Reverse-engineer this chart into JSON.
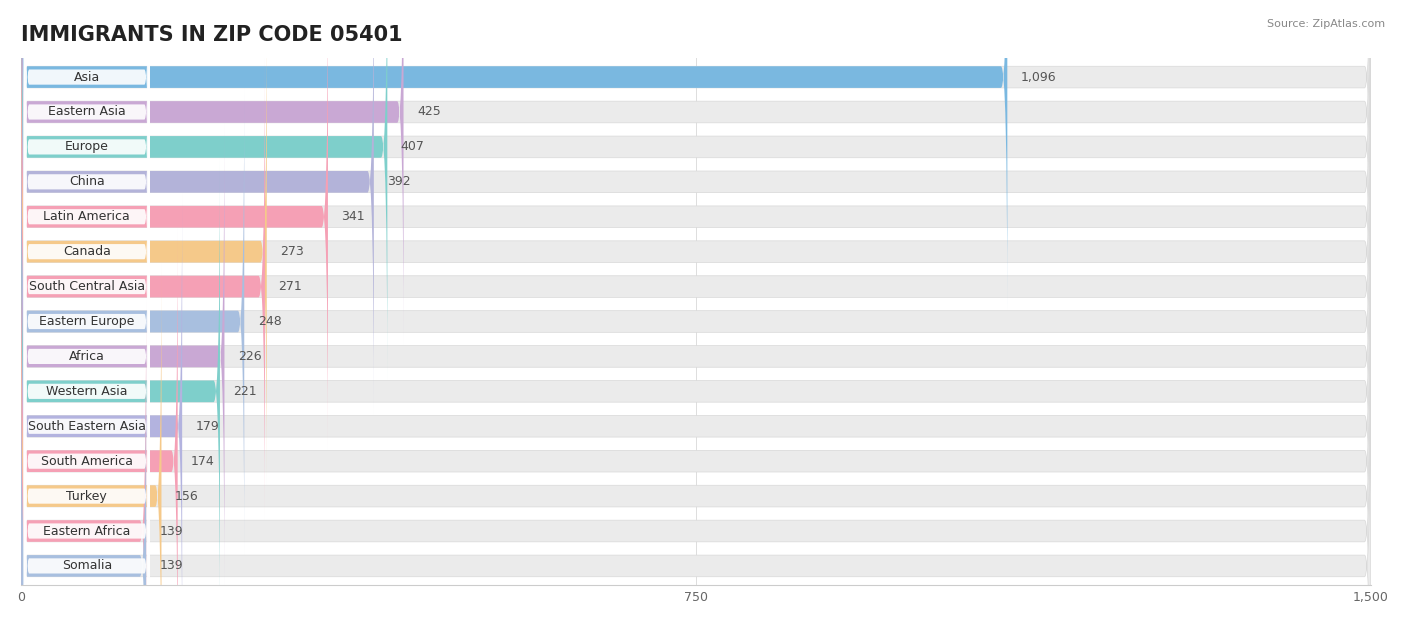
{
  "title": "IMMIGRANTS IN ZIP CODE 05401",
  "source": "Source: ZipAtlas.com",
  "categories": [
    "Asia",
    "Eastern Asia",
    "Europe",
    "China",
    "Latin America",
    "Canada",
    "South Central Asia",
    "Eastern Europe",
    "Africa",
    "Western Asia",
    "South Eastern Asia",
    "South America",
    "Turkey",
    "Eastern Africa",
    "Somalia"
  ],
  "values": [
    1096,
    425,
    407,
    392,
    341,
    273,
    271,
    248,
    226,
    221,
    179,
    174,
    156,
    139,
    139
  ],
  "bar_colors": [
    "#7ab8e0",
    "#c9a8d4",
    "#7ecfcb",
    "#b3b3d9",
    "#f5a0b5",
    "#f5c98a",
    "#f5a0b5",
    "#a8bfdf",
    "#c9a8d4",
    "#7ecfcb",
    "#b3b3df",
    "#f5a0b5",
    "#f5c98a",
    "#f5a0b5",
    "#a8bfdf"
  ],
  "bg_track_color": "#ebebeb",
  "xlim_max": 1500,
  "xticks": [
    0,
    750,
    1500
  ],
  "xtick_labels": [
    "0",
    "750",
    "1,500"
  ],
  "background_color": "#ffffff",
  "title_fontsize": 15,
  "bar_height": 0.62,
  "value_label_color": "#555555",
  "label_fontsize": 9,
  "value_fontsize": 9
}
